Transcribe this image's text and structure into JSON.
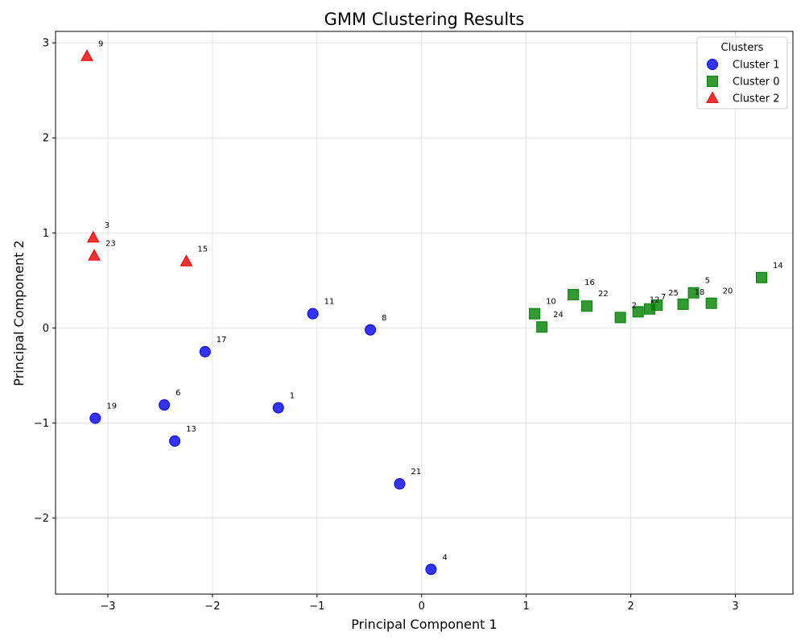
{
  "chart_data": {
    "type": "scatter",
    "title": "GMM Clustering Results",
    "xlabel": "Principal Component 1",
    "ylabel": "Principal Component 2",
    "xlim": [
      -3.5,
      3.55
    ],
    "ylim": [
      -2.8,
      3.12
    ],
    "xticks": [
      -3,
      -2,
      -1,
      0,
      1,
      2,
      3
    ],
    "yticks": [
      -2,
      -1,
      0,
      1,
      2,
      3
    ],
    "grid": true,
    "legend": {
      "title": "Clusters",
      "position": "top-right"
    },
    "series": [
      {
        "name": "Cluster 1",
        "marker": "circle",
        "color": "#0000ee",
        "points": [
          {
            "label": "11",
            "x": -1.04,
            "y": 0.15
          },
          {
            "label": "8",
            "x": -0.49,
            "y": -0.02
          },
          {
            "label": "17",
            "x": -2.07,
            "y": -0.25
          },
          {
            "label": "19",
            "x": -3.12,
            "y": -0.95
          },
          {
            "label": "6",
            "x": -2.46,
            "y": -0.81
          },
          {
            "label": "1",
            "x": -1.37,
            "y": -0.84
          },
          {
            "label": "13",
            "x": -2.36,
            "y": -1.19
          },
          {
            "label": "21",
            "x": -0.21,
            "y": -1.64
          },
          {
            "label": "4",
            "x": 0.09,
            "y": -2.54
          }
        ]
      },
      {
        "name": "Cluster 0",
        "marker": "square",
        "color": "#008000",
        "points": [
          {
            "label": "14",
            "x": 3.25,
            "y": 0.53
          },
          {
            "label": "5",
            "x": 2.6,
            "y": 0.37
          },
          {
            "label": "18",
            "x": 2.5,
            "y": 0.25
          },
          {
            "label": "20",
            "x": 2.77,
            "y": 0.26
          },
          {
            "label": "16",
            "x": 1.45,
            "y": 0.35
          },
          {
            "label": "22",
            "x": 1.58,
            "y": 0.23
          },
          {
            "label": "10",
            "x": 1.08,
            "y": 0.15
          },
          {
            "label": "24",
            "x": 1.15,
            "y": 0.01
          },
          {
            "label": "2",
            "x": 1.9,
            "y": 0.11
          },
          {
            "label": "12",
            "x": 2.07,
            "y": 0.17
          },
          {
            "label": "7",
            "x": 2.18,
            "y": 0.2
          },
          {
            "label": "25",
            "x": 2.25,
            "y": 0.24
          }
        ]
      },
      {
        "name": "Cluster 2",
        "marker": "triangle",
        "color": "#ee0000",
        "points": [
          {
            "label": "9",
            "x": -3.2,
            "y": 2.86
          },
          {
            "label": "3",
            "x": -3.14,
            "y": 0.95
          },
          {
            "label": "23",
            "x": -3.13,
            "y": 0.76
          },
          {
            "label": "15",
            "x": -2.25,
            "y": 0.7
          }
        ]
      }
    ]
  }
}
